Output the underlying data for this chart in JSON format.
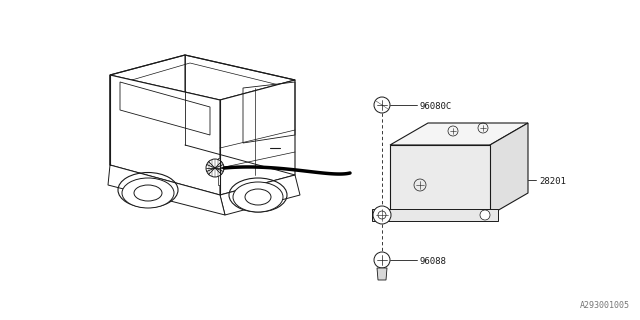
{
  "bg_color": "#ffffff",
  "line_color": "#1a1a1a",
  "ref_number": "A293001005",
  "label_96080C": "96080C",
  "label_28201": "28201",
  "label_96088": "96088",
  "font_size_label": 6.5,
  "font_size_ref": 6,
  "car_color": "#ffffff",
  "box_face_top": "#f5f5f5",
  "box_face_front": "#ebebeb",
  "box_face_right": "#e0e0e0"
}
